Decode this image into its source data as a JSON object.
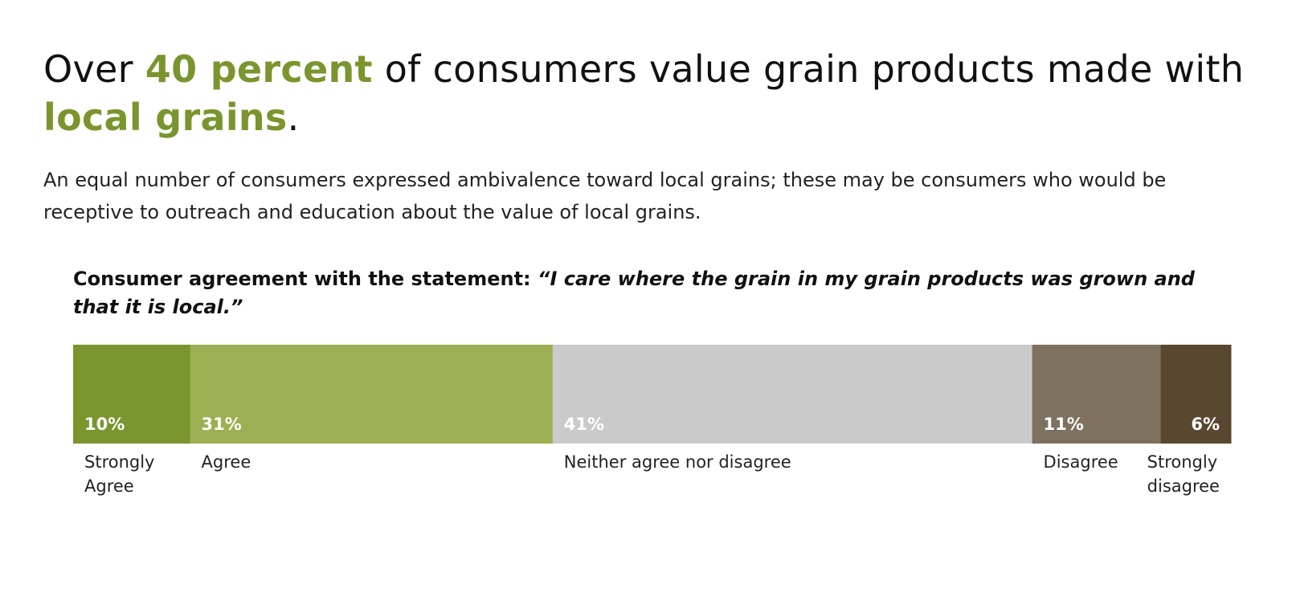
{
  "headline": {
    "part1": "Over ",
    "highlight1": "40 percent",
    "part2": " of consumers value grain products made with ",
    "highlight2": "local grains",
    "part3": "."
  },
  "subtitle": "An equal number of consumers expressed ambivalence toward local grains; these may be consumers who would be receptive to outreach and education about the value of local grains.",
  "colors": {
    "accent": "#7a952e"
  },
  "chart_data": {
    "type": "bar",
    "orientation": "horizontal-stacked-100",
    "title": "Consumer agreement with the statement: ",
    "title_quote": "“I care where the grain in my grain products was grown and that it is local.”",
    "categories": [
      "Strongly Agree",
      "Agree",
      "Neither agree nor disagree",
      "Disagree",
      "Strongly disagree"
    ],
    "category_lines": [
      [
        "Strongly",
        "Agree"
      ],
      [
        "Agree"
      ],
      [
        "Neither agree nor disagree"
      ],
      [
        "Disagree"
      ],
      [
        "Strongly",
        "disagree"
      ]
    ],
    "values": [
      10,
      31,
      41,
      11,
      6
    ],
    "value_labels": [
      "10%",
      "31%",
      "41%",
      "11%",
      "6%"
    ],
    "colors": [
      "#7a952e",
      "#9caf52",
      "#cacaca",
      "#7e7160",
      "#59482f"
    ],
    "value_label_align": [
      "left",
      "left",
      "left",
      "left",
      "right"
    ],
    "grid": false,
    "legend": "none"
  }
}
